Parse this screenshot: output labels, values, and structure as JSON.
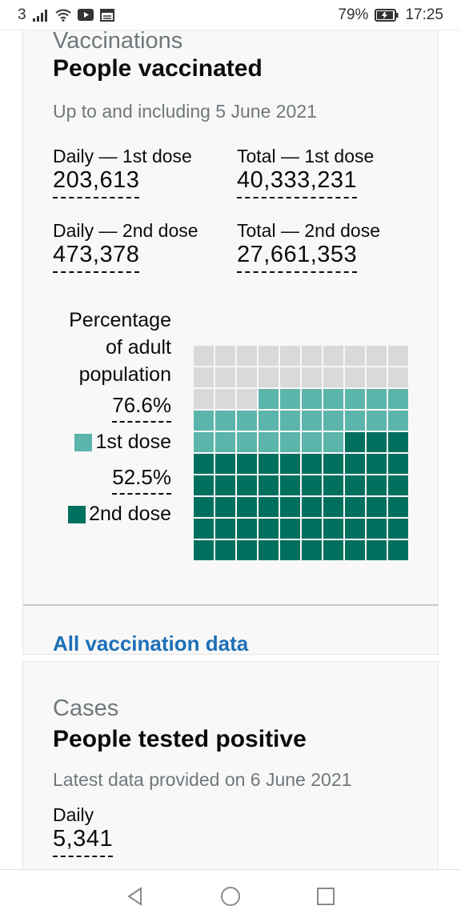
{
  "status_bar": {
    "carrier": "3",
    "battery": "79%",
    "time": "17:25",
    "icons": [
      "signal-icon",
      "wifi-icon",
      "youtube-icon",
      "news-icon",
      "battery-icon"
    ]
  },
  "vaccinations": {
    "caption": "Vaccinations",
    "heading": "People vaccinated",
    "date_note": "Up to and including 5 June 2021",
    "metrics": [
      {
        "label": "Daily — 1st dose",
        "value": "203,613"
      },
      {
        "label": "Total — 1st dose",
        "value": "40,333,231"
      },
      {
        "label": "Daily — 2nd dose",
        "value": "473,378"
      },
      {
        "label": "Total — 2nd dose",
        "value": "27,661,353"
      }
    ],
    "waffle": {
      "title": "Percentage of adult population",
      "first_dose_pct": "76.6%",
      "first_dose_label": "1st dose",
      "second_dose_pct": "52.5%",
      "second_dose_label": "2nd dose",
      "first_dose_value": 76.6,
      "second_dose_value": 52.5,
      "colors": {
        "first": "#5bb5ab",
        "second": "#00705e",
        "empty": "#d9d9d9"
      }
    },
    "link": "All vaccination data"
  },
  "cases": {
    "caption": "Cases",
    "heading": "People tested positive",
    "date_note": "Latest data provided on 6 June 2021",
    "metric": {
      "label": "Daily",
      "value": "5,341"
    }
  },
  "nav": {
    "icons": [
      "back-icon",
      "home-icon",
      "recents-icon"
    ]
  }
}
